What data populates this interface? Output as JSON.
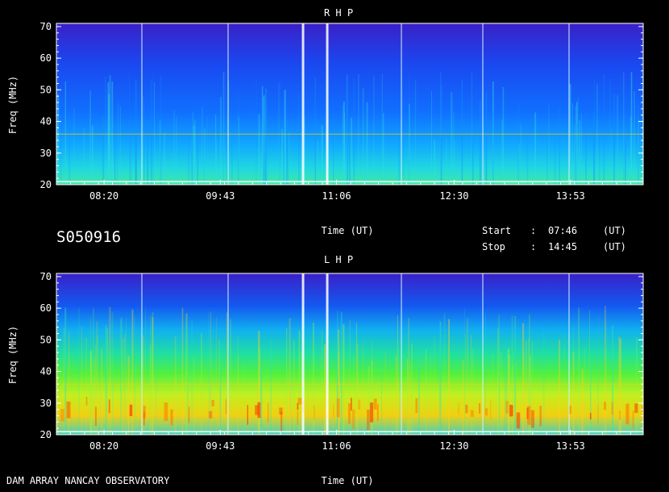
{
  "chart_data": [
    {
      "type": "heatmap",
      "title": "R H P",
      "xlabel": "Time (UT)",
      "ylabel": "Freq (MHz)",
      "y_ticks": [
        20,
        30,
        40,
        50,
        60,
        70
      ],
      "ylim": [
        20,
        71
      ],
      "x_ticks": [
        "08:20",
        "09:43",
        "11:06",
        "12:30",
        "13:53"
      ],
      "xlim": [
        "07:46",
        "14:45"
      ],
      "colors": [
        "#2020e0",
        "#1060ff",
        "#00d0ff",
        "#40ff60",
        "#ffff00",
        "#ff6000",
        "#ffffff"
      ]
    },
    {
      "type": "heatmap",
      "title": "L H P",
      "xlabel": "Time (UT)",
      "ylabel": "Freq (MHz)",
      "y_ticks": [
        20,
        30,
        40,
        50,
        60,
        70
      ],
      "ylim": [
        20,
        71
      ],
      "x_ticks": [
        "08:20",
        "09:43",
        "11:06",
        "12:30",
        "13:53"
      ],
      "xlim": [
        "07:46",
        "14:45"
      ],
      "colors": [
        "#2020e0",
        "#1060ff",
        "#00d0ff",
        "#40ff60",
        "#ffff00",
        "#ff6000",
        "#ffffff"
      ]
    }
  ],
  "info": {
    "id": "S050916",
    "start_label": "Start",
    "start_value": "07:46",
    "stop_label": "Stop",
    "stop_value": "14:45",
    "sep": ":",
    "unit": "(UT)"
  },
  "footer": "DAM ARRAY  NANCAY OBSERVATORY"
}
